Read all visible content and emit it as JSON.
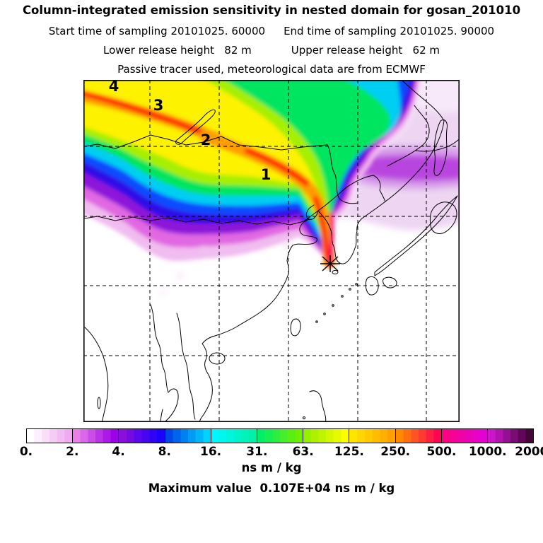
{
  "header": {
    "title": "Column-integrated emission sensitivity in nested domain for gosan_201010",
    "start_time": "Start time of sampling 20101025. 60000",
    "end_time": "End time of sampling 20101025. 90000",
    "lower_release": "Lower release height   82 m",
    "upper_release": "Upper release height   62 m",
    "tracer_line": "Passive tracer used, meteorological data are from ECMWF"
  },
  "map": {
    "trajectory_points": [
      {
        "label": "4"
      },
      {
        "label": "3"
      },
      {
        "label": "2"
      },
      {
        "label": "1"
      }
    ],
    "station_marker": "gosan-source-star"
  },
  "colorbar": {
    "tick_labels": [
      "0.",
      "2.",
      "4.",
      "8.",
      "16.",
      "31.",
      "63.",
      "125.",
      "250.",
      "500.",
      "1000.",
      "2000."
    ],
    "segments": [
      {
        "from": "#ffffff",
        "to": "#efaaf0"
      },
      {
        "from": "#ea7fe8",
        "to": "#9c00e6"
      },
      {
        "from": "#8a0edc",
        "to": "#1a00ff"
      },
      {
        "from": "#0048e8",
        "to": "#00d2fc"
      },
      {
        "from": "#00f8fc",
        "to": "#00f2a8"
      },
      {
        "from": "#00ee6a",
        "to": "#70ee00"
      },
      {
        "from": "#96ee00",
        "to": "#fdfd00"
      },
      {
        "from": "#ffe400",
        "to": "#ffa200"
      },
      {
        "from": "#ff8a00",
        "to": "#ff0452"
      },
      {
        "from": "#fb0284",
        "to": "#e202d6"
      },
      {
        "from": "#cc16cc",
        "to": "#45053a"
      }
    ],
    "unit": "ns m / kg"
  },
  "footer": {
    "max_value_line": "Maximum value  0.107E+04 ns m / kg"
  },
  "colors": {
    "pink": "#f1bcf0",
    "magenta": "#e167e2",
    "purple": "#8d14da",
    "navy": "#2f0ae6",
    "blue": "#0a4cff",
    "cyan": "#00cef2",
    "green": "#00e55e",
    "chartreuse": "#a6ef00",
    "yellow": "#fdf200",
    "orange": "#ff9c00",
    "red": "#ff2000",
    "crimson": "#ff0066",
    "lavender": "#eed6f3",
    "lavender_mid": "#d9a0ea",
    "lavender_deep": "#b944df",
    "pale_top": "#f7ebfa",
    "speckle": "#f3c9ef"
  },
  "chart_data": {
    "type": "heatmap",
    "title": "Column-integrated emission sensitivity in nested domain for gosan_201010",
    "description": "Backward-transport footprint emission sensitivity plume over East Asia ending at the Gosan receptor (star, Jeju Korea), sweeping northwest across China, Mongolia and Siberia; numbered markers 1-4 along plume axis; diffuse low-sensitivity purple field over northeast Asia",
    "units": "ns m / kg",
    "colorbar_values": [
      0,
      2,
      4,
      8,
      16,
      31,
      63,
      125,
      250,
      500,
      1000,
      2000
    ],
    "colorbar_scale": "logarithmic, discrete rainbow (white-pink-purple-blue-cyan-green-yellow-orange-red-magenta-dark purple)",
    "max_value": "0.107E+04 ns m / kg",
    "sampling": {
      "start": "20101025. 60000",
      "end": "20101025. 90000"
    },
    "release_heights": {
      "lower": "82 m",
      "upper": "62 m"
    },
    "tracer": "Passive tracer",
    "meteorology": "ECMWF",
    "receptor": "gosan_201010",
    "trajectory_marker_labels": [
      "1",
      "2",
      "3",
      "4"
    ],
    "grid": "dashed graticule, 5 vertical x 4 horizontal lines"
  }
}
